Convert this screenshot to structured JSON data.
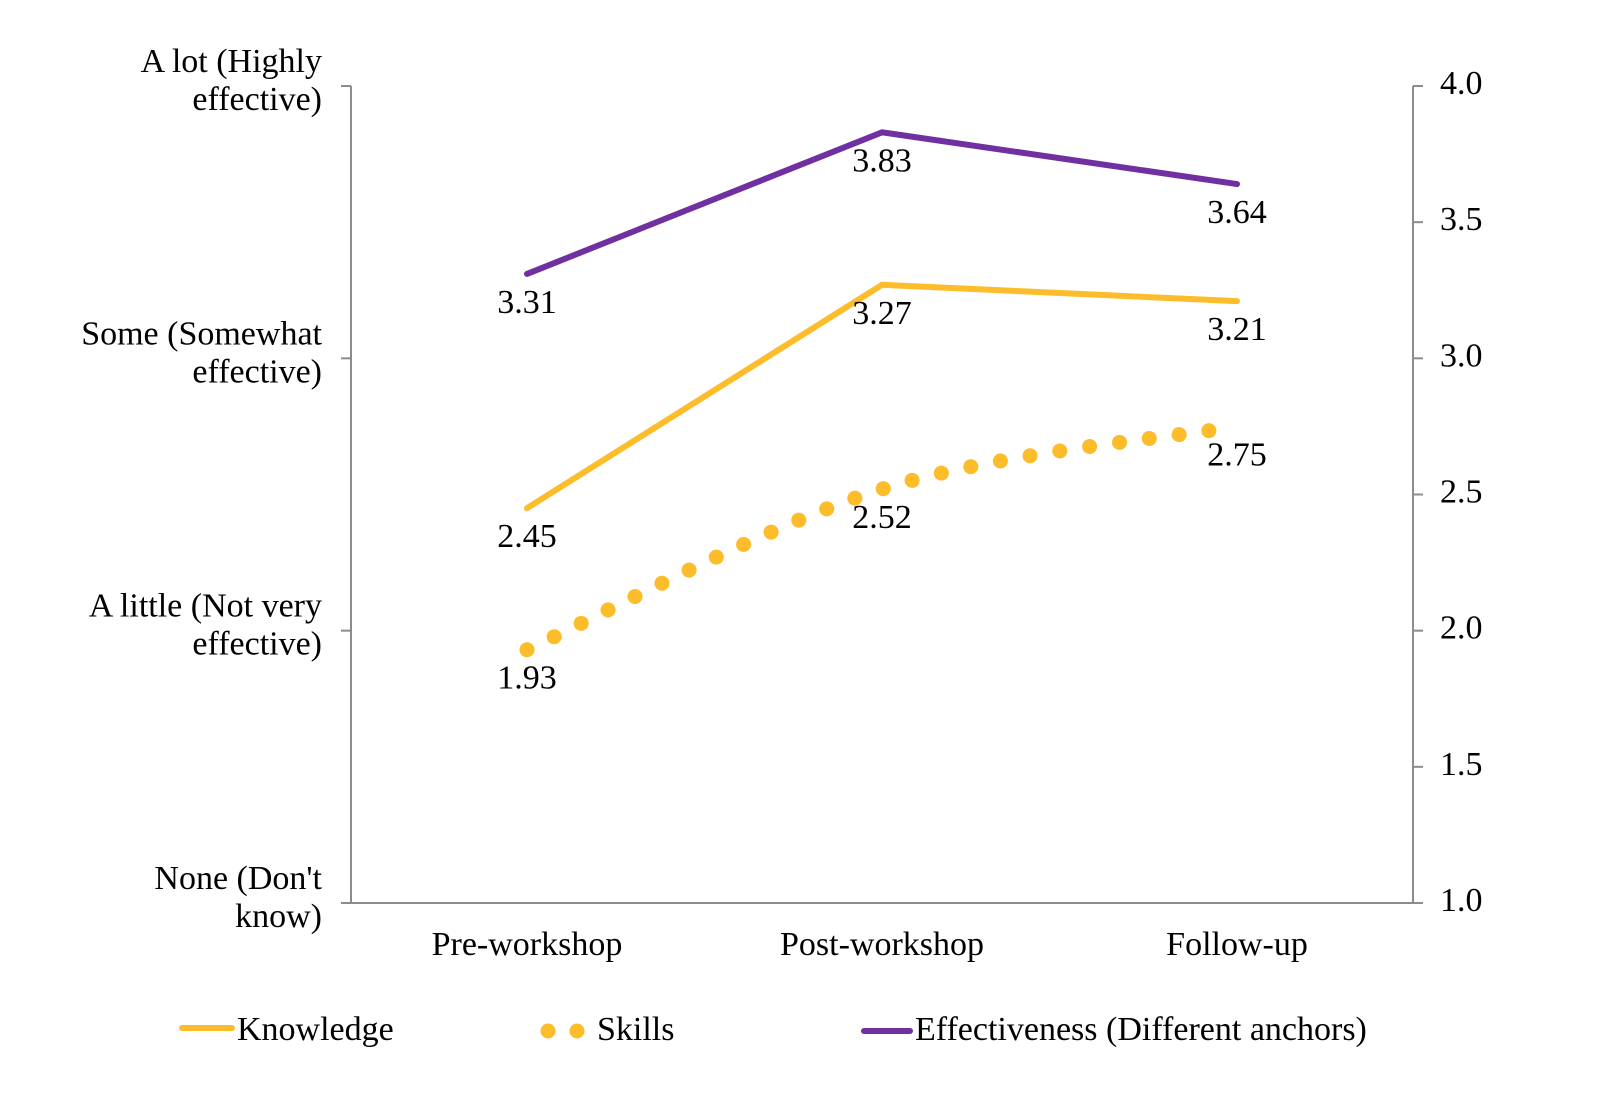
{
  "chart_data": {
    "type": "line",
    "title": "",
    "categories": [
      "Pre-workshop",
      "Post-workshop",
      "Follow-up"
    ],
    "series": [
      {
        "name": "Knowledge",
        "values": [
          2.45,
          3.27,
          3.21
        ],
        "color": "#FDBC2A",
        "style": "solid",
        "smoothed": false
      },
      {
        "name": "Skills",
        "values": [
          1.93,
          2.52,
          2.75
        ],
        "color": "#FDBC2A",
        "style": "round-dot",
        "smoothed": true
      },
      {
        "name": "Effectiveness (Different anchors)",
        "values": [
          3.31,
          3.83,
          3.64
        ],
        "color": "#7030A0",
        "style": "solid",
        "smoothed": false
      }
    ],
    "data_labels": [
      [
        "2.45",
        "3.27",
        "3.21"
      ],
      [
        "1.93",
        "2.52",
        "2.75"
      ],
      [
        "3.31",
        "3.83",
        "3.64"
      ]
    ],
    "left_axis": {
      "ylim": [
        1,
        4
      ],
      "tick_values": [
        4,
        3,
        2,
        1
      ],
      "tick_labels": [
        [
          "A lot (Highly",
          "effective)"
        ],
        [
          "Some (Somewhat",
          "effective)"
        ],
        [
          "A little (Not very",
          "effective)"
        ],
        [
          "None (Don't",
          "know)"
        ]
      ]
    },
    "right_axis": {
      "ylim": [
        1.0,
        4.0
      ],
      "tick_values": [
        4.0,
        3.5,
        3.0,
        2.5,
        2.0,
        1.5,
        1.0
      ],
      "tick_labels": [
        "4.0",
        "3.5",
        "3.0",
        "2.5",
        "2.0",
        "1.5",
        "1.0"
      ]
    },
    "xlabel": "",
    "ylabel": "",
    "grid": false,
    "legend": {
      "placement": "bottom",
      "entries": [
        "Knowledge",
        "Skills",
        "Effectiveness (Different anchors)"
      ]
    },
    "axis_color": "#8C8C8C"
  }
}
